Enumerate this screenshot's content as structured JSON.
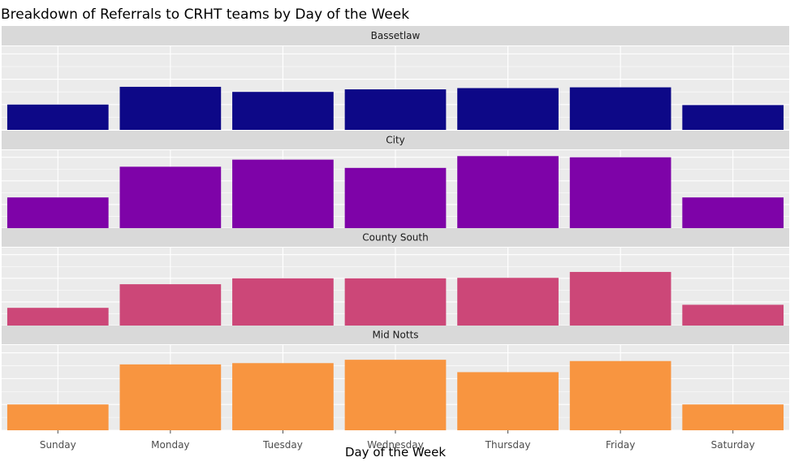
{
  "chart_data": {
    "type": "bar",
    "title": "Breakdown of Referrals to CRHT teams by Day of the Week",
    "xlabel": "Day of the Week",
    "ylabel": "",
    "categories": [
      "Sunday",
      "Monday",
      "Tuesday",
      "Wednesday",
      "Thursday",
      "Friday",
      "Saturday"
    ],
    "facet_layout": "stacked panels, shared x axis, free y scales",
    "grid": true,
    "legend": "none",
    "panels": [
      {
        "name": "Bassetlaw",
        "color": "#0d0887",
        "ylim": [
          0,
          33
        ],
        "values": [
          10,
          17,
          15,
          16,
          16.5,
          16.8,
          9.8
        ]
      },
      {
        "name": "City",
        "color": "#7e03a8",
        "ylim": [
          0,
          33
        ],
        "values": [
          13,
          26,
          29,
          25.5,
          30.5,
          30,
          13
        ]
      },
      {
        "name": "County South",
        "color": "#cc4778",
        "ylim": [
          0,
          33
        ],
        "values": [
          7.5,
          17.5,
          20,
          20,
          20.2,
          22.7,
          8.8
        ]
      },
      {
        "name": "Mid Notts",
        "color": "#f89540",
        "ylim": [
          0,
          33
        ],
        "values": [
          10,
          25.5,
          26,
          27.3,
          22.5,
          26.8,
          10
        ]
      }
    ]
  }
}
